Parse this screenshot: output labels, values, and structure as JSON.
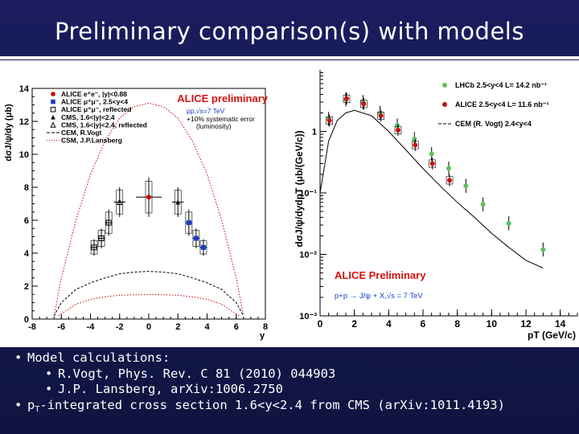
{
  "slide": {
    "title": "Preliminary comparison(s) with models"
  },
  "notes": {
    "line1": "Model calculations:",
    "line2": "R.Vogt, Phys. Rev. C 81 (2010) 044903",
    "line3": "J.P. Lansberg, arXiv:1006.2750",
    "line4_prefix": "p",
    "line4_sub": "T",
    "line4_suffix": "-integrated cross section 1.6<y<2.4 from CMS (arXiv:1011.4193)",
    "bullet": "•"
  },
  "chart_data": [
    {
      "type": "scatter",
      "xlabel": "y",
      "ylabel": "dσJ/ψ/dy (μb)",
      "xlim": [
        -8,
        8
      ],
      "ylim": [
        0,
        14
      ],
      "xticks": [
        "-8",
        "-6",
        "-4",
        "-2",
        "0",
        "2",
        "4",
        "6",
        "8"
      ],
      "yticks": [
        "0",
        "2",
        "4",
        "6",
        "8",
        "10",
        "12",
        "14"
      ],
      "banner": "ALICE preliminary",
      "energy_label": "pp,√s=7 TeV",
      "syst_label_1": "+10% systematic error",
      "syst_label_2": "(luminosity)",
      "legend": [
        {
          "label": "ALICE e⁺e⁻, |y|<0.88",
          "marker": "circle",
          "color": "#cc0000"
        },
        {
          "label": "ALICE μ⁺μ⁻, 2.5<y<4",
          "marker": "square",
          "color": "#1a3cc8"
        },
        {
          "label": "ALICE μ⁺μ⁻, reflected",
          "marker": "open-square",
          "color": "#000000"
        },
        {
          "label": "CMS, 1.6<|y|<2.4",
          "marker": "triangle",
          "color": "#000000"
        },
        {
          "label": "CMS, 1.6<|y|<2.4, reflected",
          "marker": "open-triangle",
          "color": "#000000"
        },
        {
          "label": "CEM, R.Vogt",
          "marker": "line-dashed",
          "color": "#000000"
        },
        {
          "label": "CSM, J.P.Lansberg",
          "marker": "line-dotted",
          "color": "#cc0000"
        }
      ],
      "series": [
        {
          "name": "ALICE e⁺e⁻, |y|<0.88",
          "x": [
            0
          ],
          "y": [
            7.4
          ],
          "yerr": [
            1.2
          ],
          "xerr": [
            0.88
          ]
        },
        {
          "name": "ALICE μ⁺μ⁻, 2.5<y<4",
          "x": [
            2.75,
            3.25,
            3.75
          ],
          "y": [
            5.85,
            4.9,
            4.35
          ],
          "yerr": [
            0.8,
            0.6,
            0.5
          ],
          "xerr": [
            0.25,
            0.25,
            0.25
          ]
        },
        {
          "name": "ALICE μ⁺μ⁻, reflected",
          "x": [
            -2.75,
            -3.25,
            -3.75
          ],
          "y": [
            5.85,
            4.9,
            4.35
          ],
          "yerr": [
            0.8,
            0.6,
            0.5
          ],
          "xerr": [
            0.25,
            0.25,
            0.25
          ]
        },
        {
          "name": "CMS, 1.6<|y|<2.4",
          "x": [
            2.0
          ],
          "y": [
            7.1
          ],
          "yerr": [
            0.9
          ],
          "xerr": [
            0.4
          ]
        },
        {
          "name": "CMS, 1.6<|y|<2.4, reflected",
          "x": [
            -2.0
          ],
          "y": [
            7.1
          ],
          "yerr": [
            0.9
          ],
          "xerr": [
            0.4
          ]
        },
        {
          "name": "CEM, R.Vogt",
          "x": [
            -6.5,
            -6,
            -5,
            -4,
            -3,
            -2,
            -1,
            0,
            1,
            2,
            3,
            4,
            5,
            6,
            6.5
          ],
          "y": [
            0.2,
            1.0,
            1.8,
            2.2,
            2.5,
            2.75,
            2.85,
            2.9,
            2.85,
            2.75,
            2.5,
            2.2,
            1.8,
            1.0,
            0.2
          ]
        },
        {
          "name": "CSM, J.P.Lansberg",
          "x": [
            -6.5,
            -6,
            -5,
            -4,
            -3,
            -2,
            -1,
            0,
            1,
            2,
            3,
            4,
            5,
            6,
            6.5
          ],
          "y": [
            0.2,
            2.5,
            6.0,
            8.8,
            10.8,
            12.2,
            12.9,
            13.1,
            12.9,
            12.2,
            10.8,
            8.8,
            6.0,
            2.5,
            0.2
          ]
        },
        {
          "name": "CSM lower band",
          "x": [
            -6.2,
            -5,
            -4,
            -3,
            -2,
            0,
            2,
            3,
            4,
            5,
            6.2
          ],
          "y": [
            0.2,
            0.9,
            1.2,
            1.35,
            1.45,
            1.5,
            1.45,
            1.35,
            1.2,
            0.9,
            0.2
          ]
        }
      ]
    },
    {
      "type": "scatter",
      "yscale": "log",
      "xlabel": "pT (GeV/c)",
      "ylabel": "dσJ/ψ/dydpT (μb/(GeV/c))",
      "xlim": [
        0,
        15
      ],
      "ylim": [
        0.001,
        10
      ],
      "xticks": [
        "0",
        "2",
        "4",
        "6",
        "8",
        "10",
        "12",
        "14"
      ],
      "yticks": [
        "1",
        "10⁻¹",
        "10⁻²",
        "10⁻³"
      ],
      "banner": "ALICE Preliminary",
      "process_label": "p+p → J/ψ + X,√s = 7 TeV",
      "legend": [
        {
          "label": "LHCb 2.5<y<4 L= 14.2 nb⁻¹",
          "marker": "circle",
          "color": "#5cc05c"
        },
        {
          "label": "ALICE 2.5<y<4 L= 11.6 nb⁻¹",
          "marker": "circle",
          "color": "#cc1010"
        },
        {
          "label": "CEM (R. Vogt) 2.4<y<4",
          "marker": "line-dashed",
          "color": "#000000"
        }
      ],
      "series": [
        {
          "name": "LHCb 2.5<y<4 L= 14.2 nb⁻¹",
          "x": [
            0.5,
            1.5,
            2.5,
            3.5,
            4.5,
            5.5,
            6.5,
            7.5,
            8.5,
            9.5,
            11.0,
            13.0
          ],
          "y": [
            1.6,
            3.3,
            3.0,
            2.0,
            1.25,
            0.75,
            0.43,
            0.25,
            0.13,
            0.065,
            0.032,
            0.012
          ]
        },
        {
          "name": "ALICE 2.5<y<4 L= 11.6 nb⁻¹",
          "x": [
            0.5,
            1.5,
            2.5,
            3.5,
            4.5,
            5.5,
            6.5,
            7.5
          ],
          "y": [
            1.5,
            3.4,
            2.8,
            1.8,
            1.05,
            0.6,
            0.3,
            0.16
          ]
        },
        {
          "name": "CEM (R. Vogt) 2.4<y<4",
          "x": [
            0,
            0.5,
            1,
            1.5,
            2,
            3,
            4,
            5,
            6,
            7,
            8,
            9,
            10,
            11,
            12,
            13
          ],
          "y": [
            0.1,
            0.7,
            1.5,
            2.0,
            2.2,
            1.8,
            1.0,
            0.5,
            0.25,
            0.13,
            0.07,
            0.04,
            0.022,
            0.013,
            0.008,
            0.006
          ]
        }
      ]
    }
  ]
}
